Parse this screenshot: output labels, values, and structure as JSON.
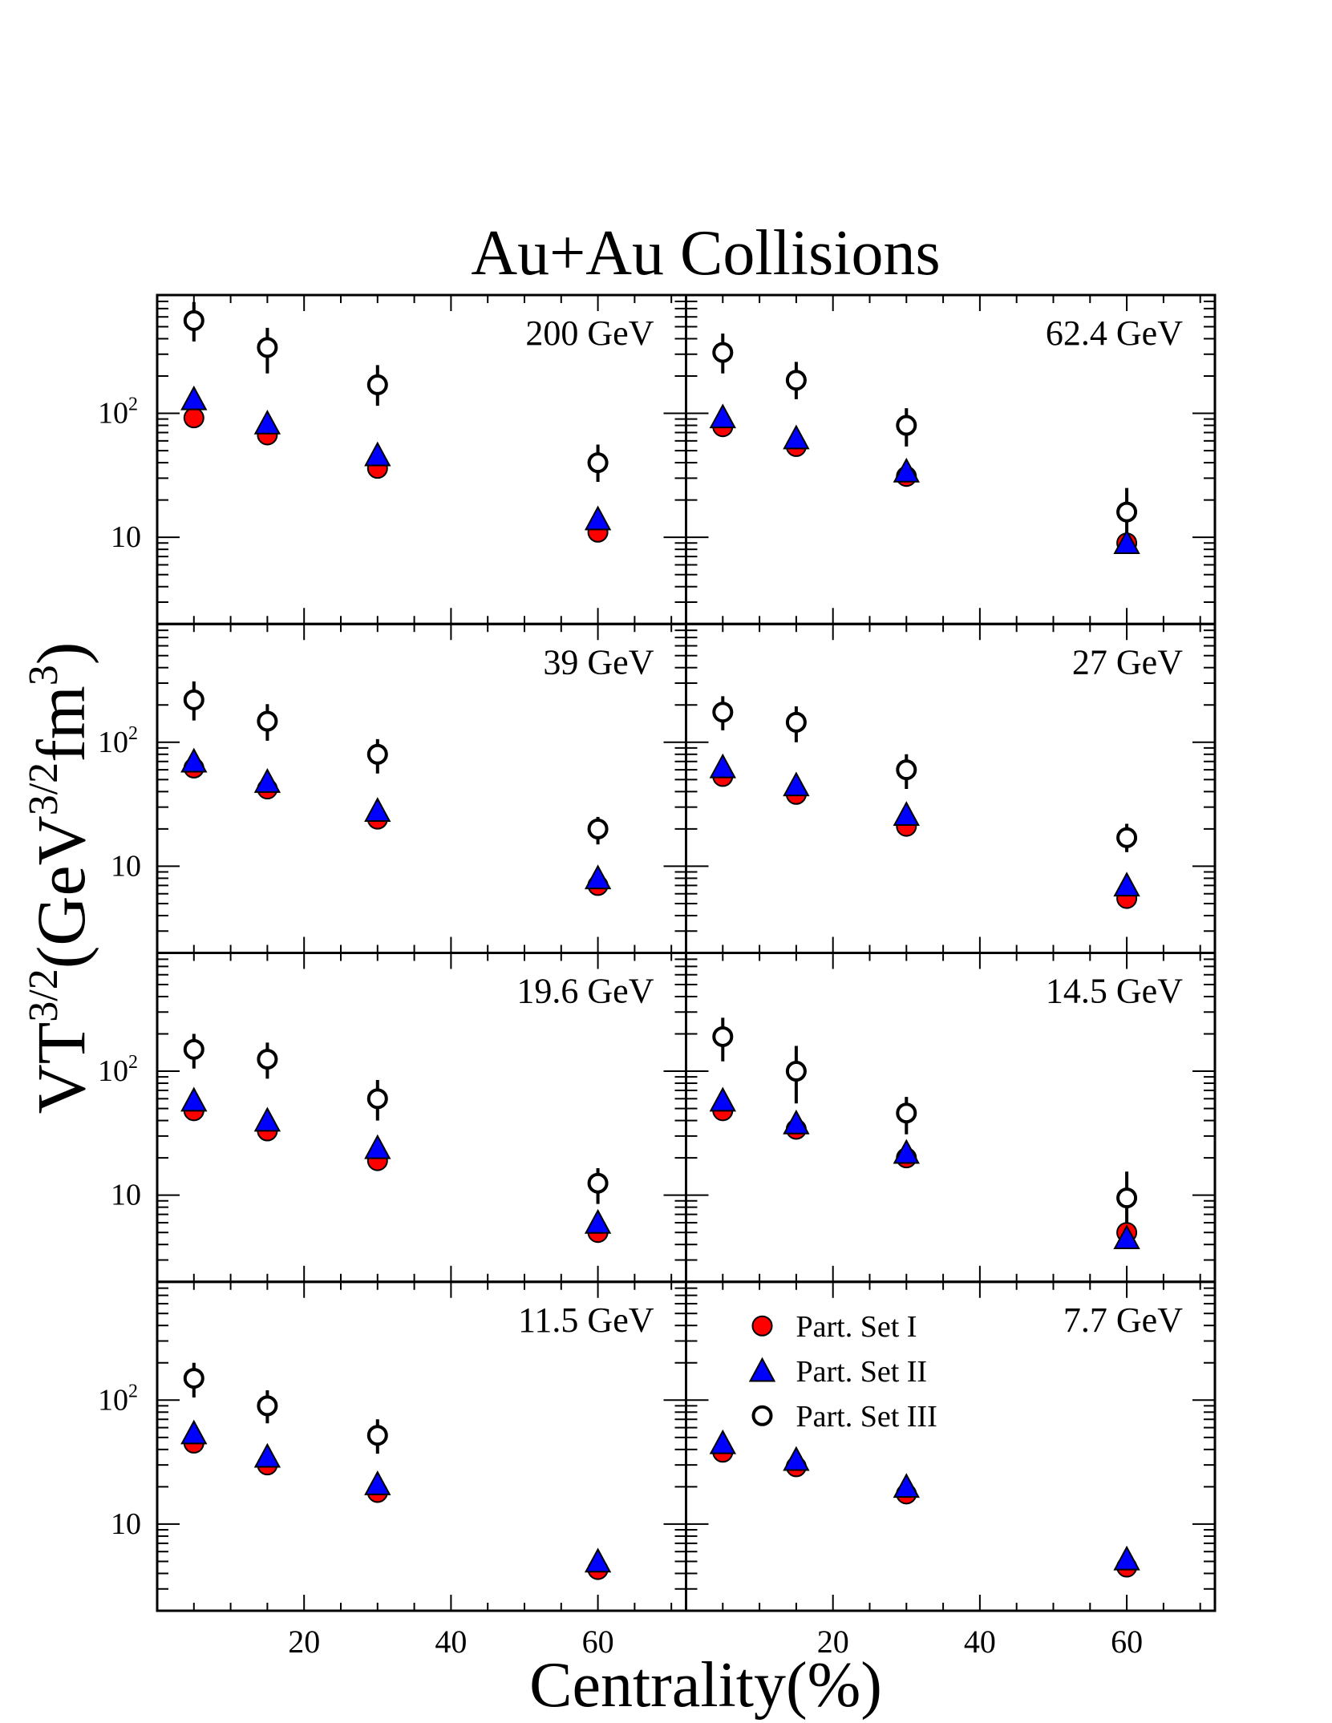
{
  "title": "Au+Au Collisions",
  "xlabel": "Centrality(%)",
  "ylabel_main": "VT",
  "ylabel_sup": "3/2",
  "ylabel_unit_open": "(GeV",
  "ylabel_unit_sup1": "3/2",
  "ylabel_unit_fm": "fm",
  "ylabel_unit_sup2": "3",
  "ylabel_unit_close": ")",
  "x_tick_labels": [
    "20",
    "40",
    "60"
  ],
  "y_tick_labels": {
    "t100_base": "10",
    "t100_exp": "2",
    "t10": "10"
  },
  "legend": [
    {
      "label": "Part. Set I",
      "marker": "circle"
    },
    {
      "label": "Part. Set II",
      "marker": "triangle"
    },
    {
      "label": "Part. Set III",
      "marker": "open-circle"
    }
  ],
  "colors": {
    "set1": "#ff0000",
    "set2": "#0000ff",
    "set3": "#ffffff"
  },
  "chart_data": {
    "type": "scatter",
    "x_scale": "linear",
    "y_scale": "log",
    "xlim": [
      0,
      72
    ],
    "ylim": [
      2,
      900
    ],
    "x_ticks": [
      20,
      40,
      60
    ],
    "y_ticks": [
      10,
      100
    ],
    "panels": [
      {
        "label": "200 GeV",
        "x": [
          5,
          15,
          30,
          60
        ],
        "set1": [
          92,
          67,
          36,
          11
        ],
        "set2": [
          130,
          83,
          46,
          14
        ],
        "set3": [
          560,
          340,
          170,
          40
        ],
        "set3_err": [
          [
            180,
            230
          ],
          [
            130,
            150
          ],
          [
            55,
            75
          ],
          [
            12,
            16
          ]
        ]
      },
      {
        "label": "62.4 GeV",
        "x": [
          5,
          15,
          30,
          60
        ],
        "set1": [
          78,
          54,
          31,
          9
        ],
        "set2": [
          93,
          63,
          34,
          9
        ],
        "set3": [
          310,
          185,
          80,
          16
        ],
        "set3_err": [
          [
            100,
            130
          ],
          [
            55,
            75
          ],
          [
            26,
            30
          ],
          [
            8,
            9
          ]
        ]
      },
      {
        "label": "39 GeV",
        "x": [
          5,
          15,
          30,
          60
        ],
        "set1": [
          62,
          42,
          24,
          7
        ],
        "set2": [
          70,
          48,
          28,
          8
        ],
        "set3": [
          220,
          148,
          80,
          20
        ],
        "set3_err": [
          [
            70,
            90
          ],
          [
            45,
            55
          ],
          [
            24,
            26
          ],
          [
            5,
            5
          ]
        ]
      },
      {
        "label": "27 GeV",
        "x": [
          5,
          15,
          30,
          60
        ],
        "set1": [
          53,
          38,
          21,
          5.5
        ],
        "set2": [
          63,
          45,
          26,
          7
        ],
        "set3": [
          175,
          145,
          60,
          17
        ],
        "set3_err": [
          [
            50,
            60
          ],
          [
            45,
            50
          ],
          [
            18,
            20
          ],
          [
            4,
            5
          ]
        ]
      },
      {
        "label": "19.6 GeV",
        "x": [
          5,
          15,
          30,
          60
        ],
        "set1": [
          48,
          33,
          19,
          5
        ],
        "set2": [
          58,
          40,
          24,
          6
        ],
        "set3": [
          150,
          125,
          60,
          12.5
        ],
        "set3_err": [
          [
            45,
            50
          ],
          [
            38,
            45
          ],
          [
            20,
            25
          ],
          [
            4,
            4
          ]
        ]
      },
      {
        "label": "14.5 GeV",
        "x": [
          5,
          15,
          30,
          60
        ],
        "set1": [
          48,
          34,
          20,
          5
        ],
        "set2": [
          58,
          38,
          22,
          4.5
        ],
        "set3": [
          190,
          100,
          46,
          9.5
        ],
        "set3_err": [
          [
            70,
            80
          ],
          [
            45,
            60
          ],
          [
            15,
            16
          ],
          [
            5,
            6
          ]
        ]
      },
      {
        "label": "11.5 GeV",
        "x": [
          5,
          15,
          30,
          60
        ],
        "set1": [
          45,
          30,
          18,
          4.3
        ],
        "set2": [
          54,
          35,
          21,
          5
        ],
        "set3": [
          150,
          90,
          52,
          null
        ],
        "set3_err": [
          [
            45,
            50
          ],
          [
            25,
            30
          ],
          [
            15,
            18
          ],
          null
        ]
      },
      {
        "label": "7.7 GeV",
        "x": [
          5,
          15,
          30,
          60
        ],
        "set1": [
          38,
          29,
          17.5,
          4.5
        ],
        "set2": [
          45,
          33,
          20,
          5.2
        ],
        "set3": [
          null,
          null,
          null,
          null
        ],
        "set3_err": [
          null,
          null,
          null,
          null
        ]
      }
    ]
  }
}
